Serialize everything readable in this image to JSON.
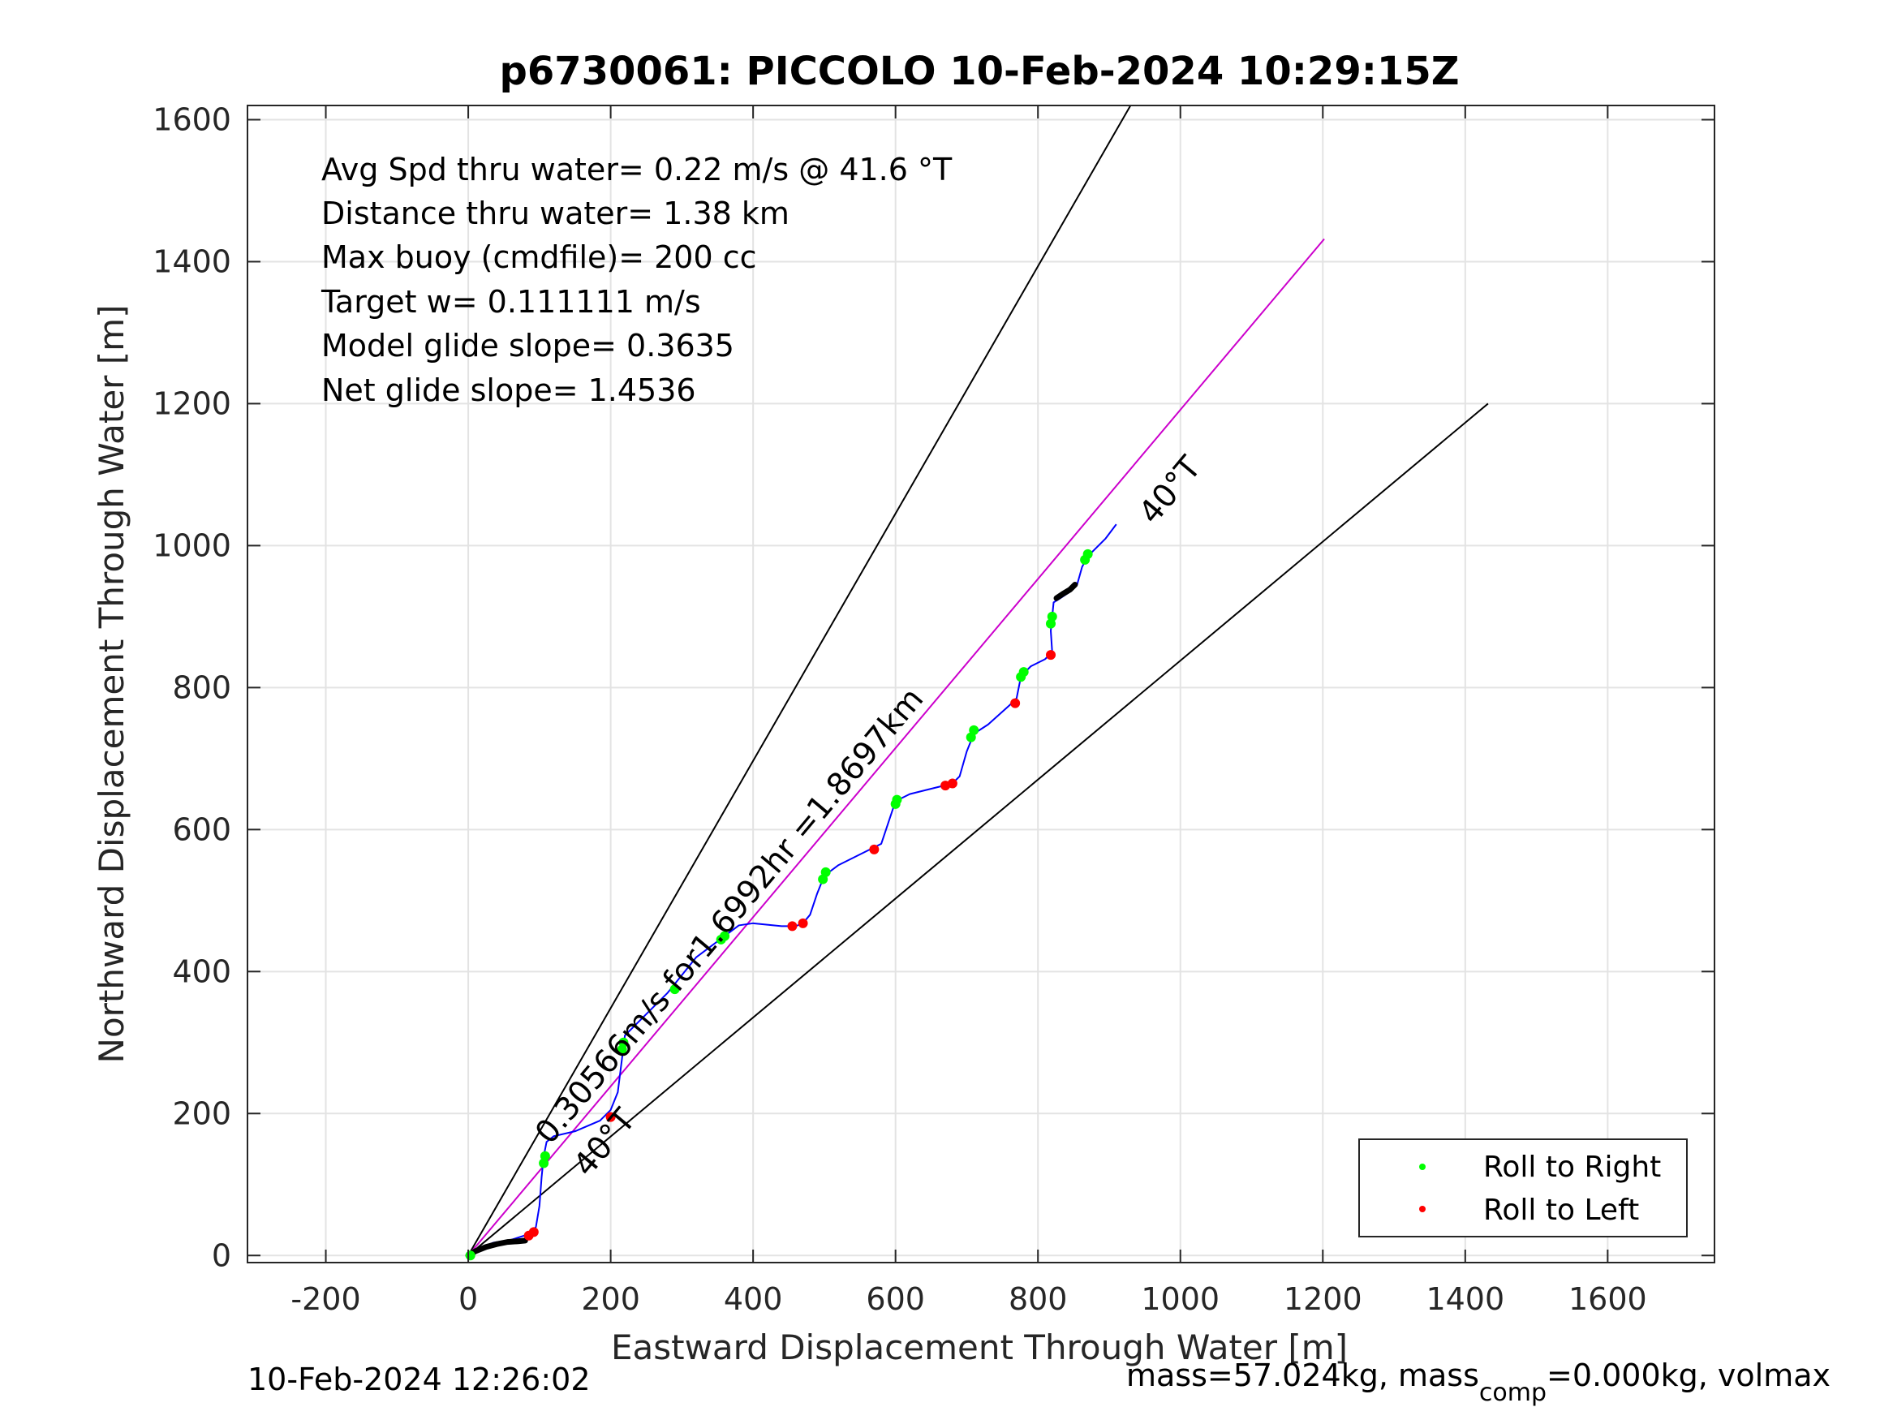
{
  "chart_data": {
    "type": "line",
    "title": "p6730061: PICCOLO 10-Feb-2024 10:29:15Z",
    "xlabel": "Eastward Displacement Through Water [m]",
    "ylabel": "Northward Displacement Through Water [m]",
    "xlim": [
      -310,
      1750
    ],
    "ylim": [
      -10,
      1620
    ],
    "xticks": [
      -200,
      0,
      200,
      400,
      600,
      800,
      1000,
      1200,
      1400,
      1600
    ],
    "yticks": [
      0,
      200,
      400,
      600,
      800,
      1000,
      1200,
      1400,
      1600
    ],
    "xtick_labels": [
      "-200",
      "0",
      "200",
      "400",
      "600",
      "800",
      "1000",
      "1200",
      "1400",
      "1600"
    ],
    "ytick_labels": [
      "0",
      "200",
      "400",
      "600",
      "800",
      "1000",
      "1200",
      "1400",
      "1600"
    ],
    "grid": true,
    "info_lines": [
      "Avg Spd thru water=  0.22 m/s @  41.6 °T",
      "Distance thru water=  1.38 km",
      "Max buoy (cmdfile)= 200 cc",
      "Target w= 0.111111 m/s",
      "Model glide slope= 0.3635",
      "Net glide slope= 1.4536"
    ],
    "annotations": {
      "speed_label": "0.30566m/s for1.6992hr =1.8697km",
      "heading_upper": "40°T",
      "heading_lower": "40°T"
    },
    "reference_lines": [
      {
        "name": "",
        "color": "#000000",
        "x": [
          0,
          930
        ],
        "y": [
          0,
          1620
        ]
      },
      {
        "name": "",
        "color": "#000000",
        "x": [
          0,
          1432
        ],
        "y": [
          0,
          1200
        ]
      },
      {
        "name": "",
        "color": "#cc00cc",
        "x": [
          0,
          1202
        ],
        "y": [
          0,
          1432
        ]
      }
    ],
    "track": {
      "name": "",
      "color": "#0000ff",
      "x": [
        0,
        15,
        35,
        60,
        85,
        95,
        100,
        103,
        106,
        110,
        120,
        150,
        185,
        200,
        210,
        215,
        220,
        240,
        280,
        320,
        360,
        380,
        400,
        420,
        440,
        460,
        470,
        480,
        490,
        500,
        520,
        560,
        570,
        580,
        590,
        600,
        620,
        660,
        680,
        690,
        700,
        710,
        730,
        760,
        770,
        775,
        780,
        790,
        810,
        820,
        818,
        822,
        830,
        845,
        855,
        862,
        870,
        880,
        895,
        910
      ],
      "y": [
        0,
        10,
        18,
        22,
        30,
        40,
        70,
        110,
        140,
        160,
        168,
        175,
        190,
        205,
        230,
        270,
        310,
        330,
        370,
        420,
        450,
        465,
        468,
        466,
        464,
        464,
        468,
        480,
        510,
        535,
        550,
        570,
        575,
        580,
        610,
        640,
        650,
        660,
        665,
        675,
        710,
        735,
        748,
        775,
        785,
        810,
        820,
        830,
        840,
        850,
        880,
        920,
        925,
        935,
        945,
        970,
        985,
        995,
        1010,
        1030
      ]
    },
    "roll_right": {
      "name": "Roll to Right",
      "color": "#00ff00",
      "x": [
        3,
        106,
        108,
        216,
        218,
        290,
        355,
        360,
        498,
        502,
        600,
        602,
        706,
        710,
        776,
        780,
        818,
        820,
        866,
        870
      ],
      "y": [
        0,
        130,
        140,
        290,
        300,
        375,
        445,
        450,
        530,
        540,
        636,
        642,
        730,
        740,
        815,
        822,
        890,
        900,
        980,
        988
      ]
    },
    "roll_left": {
      "name": "Roll to Left",
      "color": "#ff0000",
      "x": [
        85,
        92,
        200,
        455,
        470,
        570,
        670,
        680,
        768,
        818
      ],
      "y": [
        28,
        33,
        195,
        464,
        468,
        572,
        662,
        665,
        778,
        846
      ]
    },
    "bold_segments": [
      {
        "x": [
          0,
          10,
          25,
          40,
          55,
          70,
          80
        ],
        "y": [
          0,
          6,
          12,
          16,
          19,
          20,
          21
        ]
      },
      {
        "x": [
          826,
          835,
          845,
          852
        ],
        "y": [
          926,
          932,
          938,
          945
        ]
      }
    ],
    "legend_position": "bottom-right",
    "footer_left": "10-Feb-2024 12:26:02",
    "footer_right": {
      "prefix": "mass=57.024kg, mass",
      "sub": "comp",
      "suffix": "=0.000kg, volmax"
    }
  }
}
